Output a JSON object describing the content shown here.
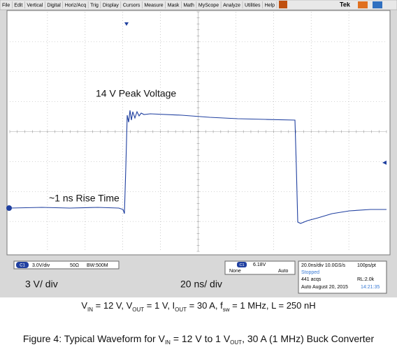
{
  "menu": [
    "File",
    "Edit",
    "Vertical",
    "Digital",
    "Horiz/Acq",
    "Trig",
    "Display",
    "Cursors",
    "Measure",
    "Mask",
    "Math",
    "MyScope",
    "Analyze",
    "Utilities",
    "Help"
  ],
  "brand": "Tek",
  "annotations": {
    "peak": "14 V Peak Voltage",
    "rise": "~1 ns Rise Time",
    "vscale": "3 V/ div",
    "hscale": "20 ns/ div"
  },
  "status": {
    "channel": "C1",
    "vdiv": "3.0V/div",
    "impedance": "50Ω",
    "bandwidth": "BW:500M",
    "trig_channel": "C1",
    "trig_coupling": "None",
    "trig_level": "6.18V",
    "trig_mode": "Auto",
    "timebase": "20.0ns/div 10.0GS/s",
    "resolution": "100ps/pt",
    "state": "Stopped",
    "acqs": "441 acqs",
    "record": "RL:2.0k",
    "date": "Auto   August 20, 2015",
    "time": "14:21:35"
  },
  "conditions": [
    "V",
    "IN",
    " = 12 V, V",
    "OUT",
    " = 1 V, I",
    "OUT",
    " = 30 A, f",
    "sw",
    " = 1 MHz, L = 250 nH"
  ],
  "caption": [
    "Figure 4: Typical Waveform for V",
    "IN",
    " = 12 V to 1 V",
    "OUT",
    ", 30 A (1 MHz) Buck Converter"
  ]
}
